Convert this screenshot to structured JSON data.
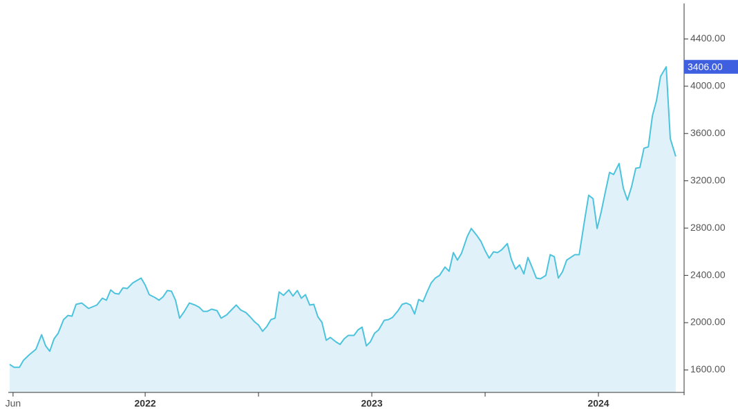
{
  "chart_data": {
    "type": "area",
    "x": [
      2021.402,
      2021.421,
      2021.445,
      2021.463,
      2021.488,
      2021.518,
      2021.543,
      2021.561,
      2021.579,
      2021.598,
      2021.616,
      2021.64,
      2021.659,
      2021.677,
      2021.695,
      2021.72,
      2021.75,
      2021.787,
      2021.811,
      2021.829,
      2021.848,
      2021.866,
      2021.884,
      2021.902,
      2021.921,
      2021.945,
      2021.982,
      2022.0,
      2022.018,
      2022.043,
      2022.061,
      2022.079,
      2022.098,
      2022.116,
      2022.134,
      2022.152,
      2022.171,
      2022.195,
      2022.22,
      2022.238,
      2022.256,
      2022.274,
      2022.293,
      2022.317,
      2022.335,
      2022.36,
      2022.384,
      2022.402,
      2022.421,
      2022.445,
      2022.463,
      2022.482,
      2022.5,
      2022.518,
      2022.537,
      2022.555,
      2022.573,
      2022.591,
      2022.61,
      2022.634,
      2022.652,
      2022.671,
      2022.689,
      2022.707,
      2022.726,
      2022.744,
      2022.762,
      2022.78,
      2022.799,
      2022.817,
      2022.841,
      2022.86,
      2022.878,
      2022.896,
      2022.921,
      2022.939,
      2022.957,
      2022.976,
      2022.994,
      2023.012,
      2023.03,
      2023.055,
      2023.073,
      2023.091,
      2023.116,
      2023.134,
      2023.152,
      2023.171,
      2023.189,
      2023.207,
      2023.226,
      2023.244,
      2023.262,
      2023.28,
      2023.299,
      2023.323,
      2023.341,
      2023.36,
      2023.378,
      2023.396,
      2023.421,
      2023.439,
      2023.463,
      2023.482,
      2023.5,
      2023.518,
      2023.537,
      2023.555,
      2023.573,
      2023.598,
      2023.616,
      2023.634,
      2023.652,
      2023.671,
      2023.689,
      2023.707,
      2023.726,
      2023.744,
      2023.768,
      2023.787,
      2023.805,
      2023.823,
      2023.841,
      2023.86,
      2023.878,
      2023.896,
      2023.915,
      2023.939,
      2023.957,
      2023.976,
      2023.994,
      2024.012,
      2024.03,
      2024.049,
      2024.067,
      2024.091,
      2024.11,
      2024.128,
      2024.146,
      2024.165,
      2024.183,
      2024.201,
      2024.22,
      2024.238,
      2024.256,
      2024.274,
      2024.299,
      2024.317,
      2024.341
    ],
    "values": [
      1647,
      1623,
      1623,
      1682,
      1728,
      1775,
      1898,
      1804,
      1758,
      1863,
      1910,
      2026,
      2061,
      2055,
      2155,
      2166,
      2120,
      2149,
      2207,
      2190,
      2277,
      2248,
      2242,
      2295,
      2289,
      2336,
      2377,
      2318,
      2237,
      2213,
      2190,
      2219,
      2272,
      2266,
      2190,
      2038,
      2090,
      2166,
      2149,
      2131,
      2096,
      2096,
      2114,
      2102,
      2038,
      2067,
      2114,
      2149,
      2108,
      2085,
      2050,
      2009,
      1980,
      1927,
      1968,
      2026,
      2038,
      2260,
      2231,
      2277,
      2225,
      2272,
      2207,
      2237,
      2149,
      2155,
      2050,
      2003,
      1851,
      1875,
      1839,
      1816,
      1863,
      1892,
      1892,
      1939,
      1962,
      1804,
      1839,
      1910,
      1939,
      2020,
      2026,
      2044,
      2102,
      2155,
      2166,
      2149,
      2073,
      2196,
      2178,
      2260,
      2336,
      2377,
      2400,
      2470,
      2435,
      2593,
      2529,
      2587,
      2727,
      2797,
      2739,
      2686,
      2610,
      2546,
      2599,
      2593,
      2616,
      2669,
      2534,
      2453,
      2488,
      2412,
      2552,
      2470,
      2377,
      2371,
      2400,
      2575,
      2558,
      2377,
      2429,
      2529,
      2552,
      2575,
      2575,
      2867,
      3078,
      3049,
      2797,
      2937,
      3102,
      3271,
      3253,
      3346,
      3136,
      3037,
      3148,
      3306,
      3312,
      3475,
      3487,
      3749,
      3878,
      4082,
      4164,
      3557,
      3406
    ],
    "value_labels": {
      "146": "3406.00"
    },
    "color": "#4cc3dc",
    "fill": "#e1f1fa",
    "badge_color": "#3d5fe0",
    "xlim": [
      2021.396,
      2024.378
    ],
    "ylim": [
      1410,
      4700
    ],
    "xticks": [
      {
        "value": 2021.417,
        "label": "Jun"
      },
      2022,
      2023,
      2024
    ],
    "xminorticks": [
      2022.5,
      2023.5
    ],
    "yticks": [
      {
        "value": 1600,
        "label": "1600.00"
      },
      {
        "value": 2000,
        "label": "2000.00"
      },
      {
        "value": 2400,
        "label": "2400.00"
      },
      {
        "value": 2800,
        "label": "2800.00"
      },
      {
        "value": 3200,
        "label": "3200.00"
      },
      {
        "value": 3600,
        "label": "3600.00"
      },
      {
        "value": 4000,
        "label": "4000.00"
      },
      {
        "value": 4400,
        "label": "4400.00"
      }
    ]
  }
}
